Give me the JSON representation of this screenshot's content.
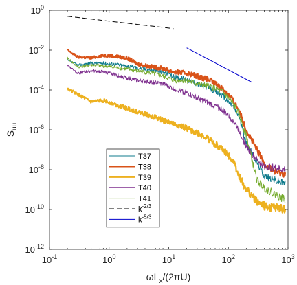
{
  "chart_data": {
    "type": "line",
    "xscale": "log",
    "yscale": "log",
    "xlim": [
      0.1,
      1000
    ],
    "ylim": [
      1e-12,
      1
    ],
    "xlabel": {
      "base": "ωL",
      "sub": "x",
      "rest": "/(2πU)"
    },
    "ylabel": {
      "base": "S",
      "sub": "uu"
    },
    "x_ticks": [
      {
        "v": 0.1,
        "base": "10",
        "exp": "-1"
      },
      {
        "v": 1,
        "base": "10",
        "exp": "0"
      },
      {
        "v": 10,
        "base": "10",
        "exp": "1"
      },
      {
        "v": 100,
        "base": "10",
        "exp": "2"
      },
      {
        "v": 1000,
        "base": "10",
        "exp": "3"
      }
    ],
    "y_ticks": [
      {
        "v": 1e-12,
        "base": "10",
        "exp": "-12"
      },
      {
        "v": 1e-10,
        "base": "10",
        "exp": "-10"
      },
      {
        "v": 1e-08,
        "base": "10",
        "exp": "-8"
      },
      {
        "v": 1e-06,
        "base": "10",
        "exp": "-6"
      },
      {
        "v": 0.0001,
        "base": "10",
        "exp": "-4"
      },
      {
        "v": 0.01,
        "base": "10",
        "exp": "-2"
      },
      {
        "v": 1,
        "base": "10",
        "exp": "0"
      }
    ],
    "grid": false,
    "legend_position": "lower-left",
    "series": [
      {
        "name": "T37",
        "color": "#0f7b8c",
        "width": 1,
        "seed": 37,
        "noise": 0.1,
        "dash": "",
        "x": [
          0.2,
          0.3,
          0.5,
          0.8,
          1.2,
          2,
          3,
          5,
          8,
          12,
          20,
          30,
          50,
          80,
          120,
          150,
          200,
          300,
          400,
          600,
          900
        ],
        "y": [
          0.003,
          0.0018,
          0.0022,
          0.0022,
          0.002,
          0.0016,
          0.0013,
          0.001,
          0.0008,
          0.00045,
          0.00035,
          0.0002,
          0.00012,
          5e-05,
          1.5e-05,
          5e-06,
          2e-07,
          2.5e-08,
          5e-09,
          3e-09,
          2e-09
        ]
      },
      {
        "name": "T38",
        "color": "#d95319",
        "width": 2.2,
        "seed": 38,
        "noise": 0.09,
        "dash": "",
        "x": [
          0.2,
          0.3,
          0.5,
          0.8,
          1.2,
          2,
          3,
          5,
          8,
          12,
          20,
          30,
          50,
          80,
          120,
          150,
          200,
          300,
          400,
          600,
          900
        ],
        "y": [
          0.01,
          0.0045,
          0.004,
          0.0055,
          0.005,
          0.004,
          0.002,
          0.0015,
          0.0012,
          0.0008,
          0.0007,
          0.0005,
          0.0003,
          0.00012,
          3e-05,
          1e-05,
          1e-06,
          1e-07,
          2e-08,
          8e-09,
          6e-09
        ]
      },
      {
        "name": "T39",
        "color": "#edb120",
        "width": 2.2,
        "seed": 39,
        "noise": 0.11,
        "dash": "",
        "x": [
          0.2,
          0.3,
          0.5,
          0.8,
          1.2,
          2,
          3,
          5,
          8,
          12,
          20,
          30,
          50,
          80,
          120,
          150,
          200,
          300,
          400,
          600,
          900
        ],
        "y": [
          0.00012,
          6e-05,
          2.5e-05,
          3e-05,
          2e-05,
          1.2e-05,
          8e-06,
          5e-06,
          3e-06,
          2e-06,
          1.2e-06,
          7e-07,
          3e-07,
          1e-07,
          3e-08,
          5e-09,
          1e-09,
          2.5e-10,
          1.5e-10,
          1.2e-10,
          1e-10
        ]
      },
      {
        "name": "T40",
        "color": "#7e2f8e",
        "width": 1,
        "seed": 40,
        "noise": 0.1,
        "dash": "",
        "x": [
          0.2,
          0.3,
          0.5,
          0.8,
          1.2,
          2,
          3,
          5,
          8,
          12,
          20,
          30,
          50,
          80,
          120,
          150,
          200,
          300,
          400,
          600,
          900
        ],
        "y": [
          0.0018,
          0.0007,
          0.0009,
          0.0008,
          0.0006,
          0.0004,
          0.0003,
          0.00025,
          0.0002,
          0.00012,
          7e-05,
          4e-05,
          2e-05,
          1e-05,
          3e-06,
          1e-06,
          1.5e-07,
          3e-08,
          1.5e-08,
          1.2e-08,
          1e-08
        ]
      },
      {
        "name": "T41",
        "color": "#77ac30",
        "width": 1,
        "seed": 41,
        "noise": 0.1,
        "dash": "",
        "x": [
          0.2,
          0.3,
          0.5,
          0.8,
          1.2,
          2,
          3,
          5,
          8,
          12,
          20,
          30,
          50,
          80,
          120,
          150,
          200,
          300,
          400,
          600,
          900
        ],
        "y": [
          0.004,
          0.0014,
          0.0018,
          0.0016,
          0.0014,
          0.0011,
          0.0009,
          0.0007,
          0.0005,
          0.0003,
          0.0003,
          0.0002,
          0.00015,
          8e-05,
          2e-05,
          6e-06,
          5e-07,
          3e-09,
          1.2e-09,
          6e-10,
          3e-10
        ]
      },
      {
        "name": "k^-2/3",
        "color": "#000000",
        "width": 1,
        "seed": 0,
        "noise": 0,
        "dash": "7,4",
        "x": [
          0.2,
          12
        ],
        "y": [
          0.5,
          0.12
        ]
      },
      {
        "name": "k^-5/3",
        "color": "#0000cc",
        "width": 1,
        "seed": 0,
        "noise": 0,
        "dash": "",
        "x": [
          20,
          250
        ],
        "y": [
          0.013,
          0.00024
        ]
      }
    ],
    "legend": [
      {
        "label": "T37",
        "color": "#0f7b8c",
        "width": 1,
        "dash": ""
      },
      {
        "label": "T38",
        "color": "#d95319",
        "width": 2.2,
        "dash": ""
      },
      {
        "label": "T39",
        "color": "#edb120",
        "width": 2.2,
        "dash": ""
      },
      {
        "label": "T40",
        "color": "#7e2f8e",
        "width": 1,
        "dash": ""
      },
      {
        "label": "T41",
        "color": "#77ac30",
        "width": 1,
        "dash": ""
      },
      {
        "label": "k",
        "sup": "-2/3",
        "color": "#000000",
        "width": 1,
        "dash": "7,4"
      },
      {
        "label": "k",
        "sup": "-5/3",
        "color": "#0000cc",
        "width": 1,
        "dash": ""
      }
    ]
  }
}
